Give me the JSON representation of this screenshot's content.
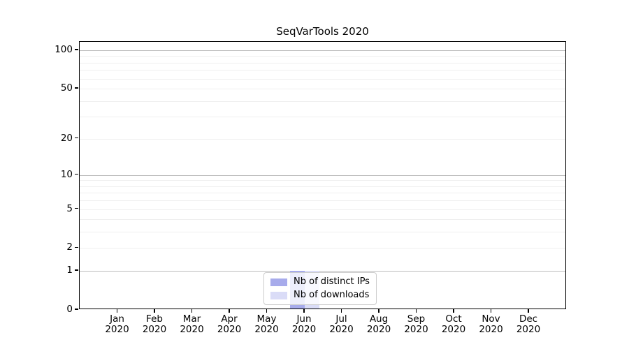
{
  "chart_data": {
    "type": "bar",
    "title": "SeqVarTools 2020",
    "categories": [
      "Jan",
      "Feb",
      "Mar",
      "Apr",
      "May",
      "Jun",
      "Jul",
      "Aug",
      "Sep",
      "Oct",
      "Nov",
      "Dec"
    ],
    "year_sublabel": "2020",
    "series": [
      {
        "name": "Nb of distinct IPs",
        "color": "#a7abeb",
        "values": [
          0,
          0,
          0,
          0,
          0,
          1,
          0,
          0,
          0,
          0,
          0,
          0
        ]
      },
      {
        "name": "Nb of downloads",
        "color": "#dadcf7",
        "values": [
          0,
          0,
          0,
          0,
          0,
          1,
          0,
          0,
          0,
          0,
          0,
          0
        ]
      }
    ],
    "y_axis": {
      "scale": "log1p",
      "ticks": [
        0,
        1,
        2,
        5,
        10,
        20,
        50,
        100
      ],
      "major_gridlines": [
        1,
        10,
        100
      ],
      "minor_gridlines": [
        2,
        3,
        4,
        5,
        6,
        7,
        8,
        9,
        20,
        30,
        40,
        50,
        60,
        70,
        80,
        90
      ],
      "ylim": [
        0,
        116
      ]
    },
    "legend_position": "bottom-center",
    "colors": {
      "major_grid": "#bcbcbc",
      "minor_grid": "#efefef",
      "axis": "#000000"
    }
  }
}
